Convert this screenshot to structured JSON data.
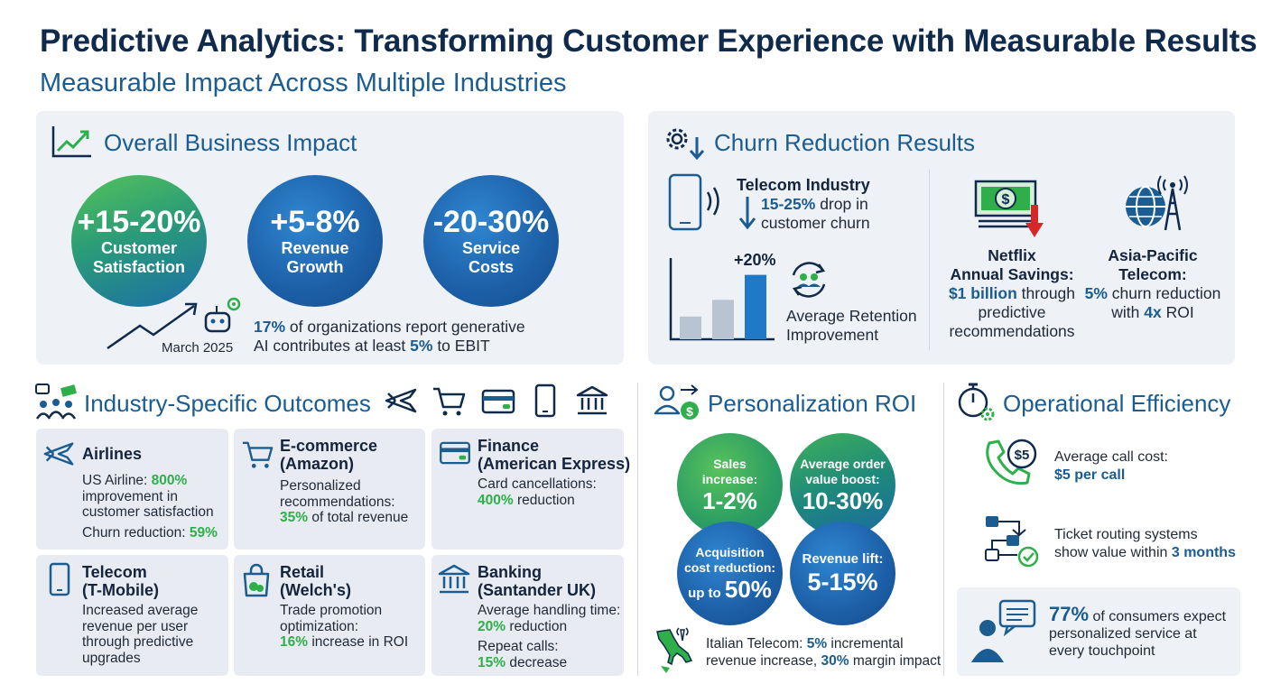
{
  "header": {
    "title": "Predictive Analytics: Transforming Customer Experience with Measurable Results",
    "subtitle": "Measurable Impact Across Multiple Industries"
  },
  "overall": {
    "heading": "Overall Business Impact",
    "circles": [
      {
        "value": "+15-20%",
        "label1": "Customer",
        "label2": "Satisfaction"
      },
      {
        "value": "+5-8%",
        "label1": "Revenue",
        "label2": "Growth"
      },
      {
        "value": "-20-30%",
        "label1": "Service",
        "label2": "Costs"
      }
    ],
    "date": "March 2025",
    "stat_pct": "17%",
    "stat_text1": " of organizations report generative",
    "stat_text2": "AI contributes at least ",
    "stat_pct2": "5%",
    "stat_text3": " to EBIT"
  },
  "churn": {
    "heading": "Churn Reduction Results",
    "telecom_title": "Telecom Industry",
    "telecom_pct": "15-25%",
    "telecom_text1": " drop in",
    "telecom_text2": "customer churn",
    "bar_label": "+20%",
    "bar_values": [
      0.3,
      0.52,
      0.85
    ],
    "retention1": "Average Retention",
    "retention2": "Improvement",
    "netflix_title1": "Netflix",
    "netflix_title2": "Annual Savings:",
    "netflix_value": "$1 billion",
    "netflix_text1": " through",
    "netflix_text2": "predictive",
    "netflix_text3": "recommendations",
    "apac_title1": "Asia-Pacific",
    "apac_title2": "Telecom:",
    "apac_pct": "5%",
    "apac_text1": " churn reduction",
    "apac_text2": "with ",
    "apac_roi": "4x",
    "apac_text3": " ROI"
  },
  "industry": {
    "heading": "Industry-Specific Outcomes",
    "cards": [
      {
        "title1": "Airlines",
        "title2": "",
        "l1": "US Airline: ",
        "h1": "800%",
        "l2": "improvement in",
        "l3": "customer satisfaction",
        "l4": "Churn reduction: ",
        "h4": "59%"
      },
      {
        "title1": "E-commerce",
        "title2": "(Amazon)",
        "l1": "Personalized",
        "l2": "recommendations:",
        "h3": "35%",
        "l3": " of total revenue"
      },
      {
        "title1": "Finance",
        "title2": "(American Express)",
        "l1": "Card cancellations:",
        "h2": "400%",
        "l2": " reduction"
      },
      {
        "title1": "Telecom",
        "title2": "(T-Mobile)",
        "l1": "Increased average",
        "l2": "revenue per user",
        "l3": "through predictive",
        "l4": "upgrades"
      },
      {
        "title1": "Retail",
        "title2": "(Welch's)",
        "l1": "Trade promotion",
        "l2": "optimization:",
        "h3": "16%",
        "l3": " increase in ROI"
      },
      {
        "title1": "Banking",
        "title2": "(Santander UK)",
        "l1": "Average handling time:",
        "h2": "20%",
        "l2": " reduction",
        "l3": "Repeat calls:",
        "h4": "15%",
        "l4": " decrease"
      }
    ]
  },
  "personalization": {
    "heading": "Personalization ROI",
    "circles": [
      {
        "l1": "Sales",
        "l2": "increase:",
        "value": "1-2%"
      },
      {
        "l1": "Average order",
        "l2": "value boost:",
        "value": "10-30%"
      },
      {
        "l1": "Acquisition",
        "l2": "cost reduction:",
        "pre": "up to ",
        "value": "50%"
      },
      {
        "l1": "Revenue lift:",
        "l2": "",
        "value": "5-15%"
      }
    ],
    "italian1": "Italian Telecom: ",
    "italian_pct": "5%",
    "italian2": " incremental",
    "italian3": "revenue increase, ",
    "italian_pct2": "30%",
    "italian4": " margin impact"
  },
  "operational": {
    "heading": "Operational Efficiency",
    "call_label": "Average call cost:",
    "call_value": "$5 per call",
    "ticket1": "Ticket routing systems",
    "ticket2": "show value within ",
    "ticket_value": "3 months",
    "consumer_pct": "77%",
    "consumer1": " of consumers expect",
    "consumer2": "personalized service at",
    "consumer3": "every touchpoint"
  },
  "colors": {
    "navy": "#0f2a4a",
    "accent_blue": "#1b5c91",
    "green": "#2eaf4a",
    "panel": "#eef1f6"
  }
}
